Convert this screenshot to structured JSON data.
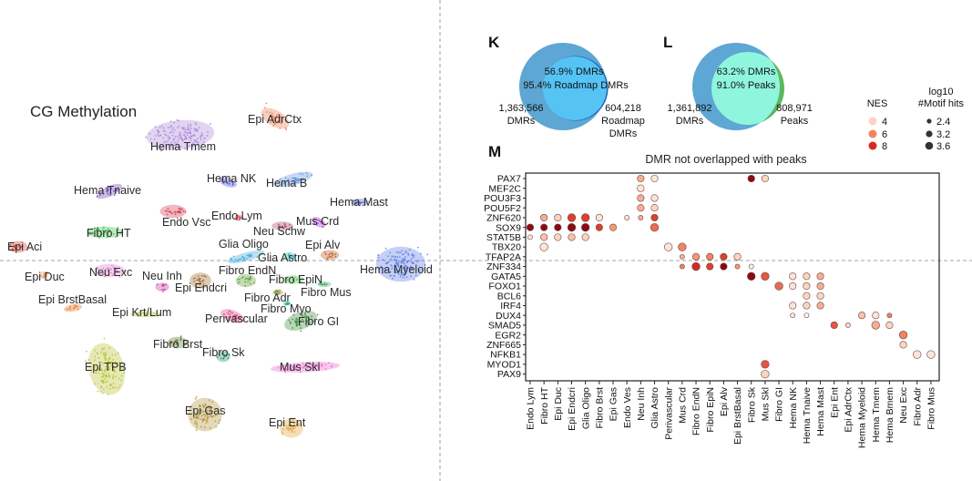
{
  "tsne": {
    "title": "CG Methylation",
    "clusters": [
      {
        "name": "Epi AdrCtx",
        "color": "#e8774f"
      },
      {
        "name": "Hema Tmem",
        "color": "#a883d8"
      },
      {
        "name": "Hema NK",
        "color": "#3b3fcf"
      },
      {
        "name": "Hema B",
        "color": "#5b8fe0"
      },
      {
        "name": "Hema Tnaive",
        "color": "#6a3fb5"
      },
      {
        "name": "Hema Mast",
        "color": "#4b5fc9"
      },
      {
        "name": "Endo Vsc",
        "color": "#d0344a"
      },
      {
        "name": "Endo Lym",
        "color": "#d84a50"
      },
      {
        "name": "Neu Schw",
        "color": "#a8405c"
      },
      {
        "name": "Mus Crd",
        "color": "#a22fd0"
      },
      {
        "name": "Fibro HT",
        "color": "#3cbf4b"
      },
      {
        "name": "Glia Oligo",
        "color": "#3aa5d8"
      },
      {
        "name": "Glia Astro",
        "color": "#1ec0c0"
      },
      {
        "name": "Epi Alv",
        "color": "#b5521e"
      },
      {
        "name": "Epi Aci",
        "color": "#d63a2b"
      },
      {
        "name": "Hema Myeloid",
        "color": "#5a78e6"
      },
      {
        "name": "Epi Duc",
        "color": "#e8904e"
      },
      {
        "name": "Neu Exc",
        "color": "#d87ac8"
      },
      {
        "name": "Neu Inh",
        "color": "#c0309a"
      },
      {
        "name": "Epi Endcri",
        "color": "#9c6a2a"
      },
      {
        "name": "Fibro EndN",
        "color": "#5a9a2d"
      },
      {
        "name": "Fibro EpiN",
        "color": "#4cc04c"
      },
      {
        "name": "Fibro Mus",
        "color": "#3cb06c"
      },
      {
        "name": "Fibro Adr",
        "color": "#7a8a2a"
      },
      {
        "name": "Fibro Myo",
        "color": "#20b0a0"
      },
      {
        "name": "Perivascular",
        "color": "#e03a7a"
      },
      {
        "name": "Fibro GI",
        "color": "#3a8a3a"
      },
      {
        "name": "Epi BrstBasal",
        "color": "#e87020"
      },
      {
        "name": "Epi Krt/Lum",
        "color": "#b0c040"
      },
      {
        "name": "Fibro Brst",
        "color": "#5a7030"
      },
      {
        "name": "Fibro Sk",
        "color": "#1a8a6a"
      },
      {
        "name": "Epi TPB",
        "color": "#b8c030"
      },
      {
        "name": "Mus Skl",
        "color": "#e860c8"
      },
      {
        "name": "Epi Gas",
        "color": "#b09030"
      },
      {
        "name": "Epi Ent",
        "color": "#e0a030"
      }
    ]
  },
  "venn_k": {
    "panel": "K",
    "overlap_line1": "56.9% DMRs",
    "overlap_line2": "95.4% Roadmap DMRs",
    "left_count": "1,363,566",
    "left_label": "DMRs",
    "right_count": "604,218",
    "right_label1": "Roadmap",
    "right_label2": "DMRs",
    "colors": {
      "left": "#5ea6d4",
      "overlap": "#55c4f5",
      "right": "#1f5fb5"
    }
  },
  "venn_l": {
    "panel": "L",
    "overlap_line1": "63.2% DMRs",
    "overlap_line2": "91.0% Peaks",
    "left_count": "1,361,892",
    "left_label": "DMRs",
    "right_count": "808,971",
    "right_label": "Peaks",
    "colors": {
      "left": "#5ea6d4",
      "overlap": "#8ff5dc",
      "right": "#5cb85c"
    }
  },
  "legend": {
    "nes_title": "NES",
    "nes_values": [
      "4",
      "6",
      "8"
    ],
    "hits_title1": "log10",
    "hits_title2": "#Motif hits",
    "hits_values": [
      "2.4",
      "3.2",
      "3.6"
    ]
  },
  "chart_data": {
    "panel": "M",
    "type": "dot",
    "title": "DMR not overlapped with peaks",
    "rows": [
      "PAX7",
      "MEF2C",
      "POU3F3",
      "POU5F2",
      "ZNF620",
      "SOX9",
      "STAT5B",
      "TBX20",
      "TFAP2A",
      "ZNF334",
      "GATA5",
      "FOXO1",
      "BCL6",
      "IRF4",
      "DUX4",
      "SMAD5",
      "EGR2",
      "ZNF665",
      "NFKB1",
      "MYOD1",
      "PAX9"
    ],
    "columns": [
      "Endo Lym",
      "Fibro HT",
      "Epi Duc",
      "Epi Endcri",
      "Glia Oligo",
      "Fibro Brst",
      "Epi Gas",
      "Endo Ves",
      "Neu Inh",
      "Glia Astro",
      "Perivascular",
      "Mus Crd",
      "Fibro EndN",
      "Fibro EpiN",
      "Epi Alv",
      "Epi BrstBasal",
      "Fibro Sk",
      "Mus Skl",
      "Fibro GI",
      "Hema NK",
      "Hema Tnaive",
      "Hema Mast",
      "Epi Ent",
      "Epi AdrCtx",
      "Hema Myeloid",
      "Hema Tmem",
      "Hema Bmem",
      "Neu Exc",
      "Fibro Adr",
      "Fibro Mus"
    ],
    "color_key": "NES",
    "size_key": "log10 #Motif hits",
    "points": [
      [
        "PAX7",
        "Neu Inh",
        5,
        3.2
      ],
      [
        "PAX7",
        "Glia Astro",
        3.5,
        3.2
      ],
      [
        "PAX7",
        "Fibro Sk",
        9,
        3.2
      ],
      [
        "PAX7",
        "Mus Skl",
        4,
        3.2
      ],
      [
        "MEF2C",
        "Neu Inh",
        3.5,
        3.2
      ],
      [
        "POU3F3",
        "Neu Inh",
        5,
        3.2
      ],
      [
        "POU3F3",
        "Glia Astro",
        3.5,
        3.2
      ],
      [
        "POU5F2",
        "Neu Inh",
        5,
        3.2
      ],
      [
        "POU5F2",
        "Glia Astro",
        4,
        3.2
      ],
      [
        "ZNF620",
        "Fibro HT",
        5,
        3.2
      ],
      [
        "ZNF620",
        "Epi Duc",
        4,
        3.2
      ],
      [
        "ZNF620",
        "Epi Endcri",
        7.5,
        3.6
      ],
      [
        "ZNF620",
        "Glia Oligo",
        7.5,
        3.6
      ],
      [
        "ZNF620",
        "Fibro Brst",
        3.5,
        3.2
      ],
      [
        "ZNF620",
        "Endo Ves",
        3.5,
        2.4
      ],
      [
        "ZNF620",
        "Neu Inh",
        5,
        2.4
      ],
      [
        "ZNF620",
        "Glia Astro",
        7.5,
        3.2
      ],
      [
        "SOX9",
        "Endo Lym",
        9,
        3.2
      ],
      [
        "SOX9",
        "Fibro HT",
        9,
        3.2
      ],
      [
        "SOX9",
        "Epi Duc",
        9,
        3.2
      ],
      [
        "SOX9",
        "Epi Endcri",
        9,
        3.6
      ],
      [
        "SOX9",
        "Glia Oligo",
        9,
        3.6
      ],
      [
        "SOX9",
        "Fibro Brst",
        7.5,
        3.2
      ],
      [
        "SOX9",
        "Epi Gas",
        5.5,
        3.2
      ],
      [
        "SOX9",
        "Glia Astro",
        6.5,
        3.6
      ],
      [
        "STAT5B",
        "Endo Lym",
        3.5,
        2.4
      ],
      [
        "STAT5B",
        "Fibro HT",
        4.5,
        3.2
      ],
      [
        "STAT5B",
        "Epi Duc",
        4,
        3.2
      ],
      [
        "STAT5B",
        "Epi Endcri",
        4.5,
        3.2
      ],
      [
        "STAT5B",
        "Glia Oligo",
        4,
        3.2
      ],
      [
        "TBX20",
        "Fibro HT",
        3.5,
        3.6
      ],
      [
        "TBX20",
        "Perivascular",
        3.5,
        3.6
      ],
      [
        "TBX20",
        "Mus Crd",
        6,
        3.6
      ],
      [
        "TFAP2A",
        "Mus Crd",
        5,
        2.4
      ],
      [
        "TFAP2A",
        "Fibro EndN",
        5.5,
        3.2
      ],
      [
        "TFAP2A",
        "Fibro EpiN",
        6,
        3.2
      ],
      [
        "TFAP2A",
        "Epi Alv",
        7.5,
        3.2
      ],
      [
        "TFAP2A",
        "Epi BrstBasal",
        4,
        3.2
      ],
      [
        "ZNF334",
        "Mus Crd",
        6,
        2.4
      ],
      [
        "ZNF334",
        "Fibro EndN",
        8,
        3.6
      ],
      [
        "ZNF334",
        "Fibro EpiN",
        7.5,
        3.2
      ],
      [
        "ZNF334",
        "Epi Alv",
        9,
        3.2
      ],
      [
        "ZNF334",
        "Epi BrstBasal",
        5.5,
        2.4
      ],
      [
        "ZNF334",
        "Fibro Sk",
        3,
        2.4
      ],
      [
        "GATA5",
        "Fibro Sk",
        9,
        3.6
      ],
      [
        "GATA5",
        "Mus Skl",
        7,
        3.6
      ],
      [
        "GATA5",
        "Hema NK",
        3.5,
        3.2
      ],
      [
        "GATA5",
        "Hema Tnaive",
        4,
        3.2
      ],
      [
        "GATA5",
        "Hema Mast",
        5,
        3.2
      ],
      [
        "FOXO1",
        "Fibro GI",
        6.5,
        3.6
      ],
      [
        "FOXO1",
        "Hema NK",
        3.5,
        3.2
      ],
      [
        "FOXO1",
        "Hema Tnaive",
        4,
        3.2
      ],
      [
        "FOXO1",
        "Hema Mast",
        5,
        3.2
      ],
      [
        "BCL6",
        "Hema Tnaive",
        4,
        3.2
      ],
      [
        "BCL6",
        "Hema Mast",
        4,
        3.2
      ],
      [
        "IRF4",
        "Hema NK",
        3.5,
        3.2
      ],
      [
        "IRF4",
        "Hema Tnaive",
        4,
        3.2
      ],
      [
        "IRF4",
        "Hema Mast",
        5,
        3.2
      ],
      [
        "DUX4",
        "Hema NK",
        3.5,
        2.4
      ],
      [
        "DUX4",
        "Hema Tnaive",
        3,
        2.4
      ],
      [
        "DUX4",
        "Hema Myeloid",
        4.5,
        3.2
      ],
      [
        "DUX4",
        "Hema Tmem",
        3.5,
        3.2
      ],
      [
        "DUX4",
        "Hema Bmem",
        6,
        2.4
      ],
      [
        "SMAD5",
        "Epi Ent",
        7,
        3.2
      ],
      [
        "SMAD5",
        "Epi AdrCtx",
        4,
        2.4
      ],
      [
        "SMAD5",
        "Hema Tmem",
        5,
        3.6
      ],
      [
        "SMAD5",
        "Hema Bmem",
        4,
        3.2
      ],
      [
        "EGR2",
        "Neu Exc",
        6,
        3.6
      ],
      [
        "ZNF665",
        "Neu Exc",
        4,
        3.2
      ],
      [
        "NFKB1",
        "Fibro Adr",
        3.5,
        3.6
      ],
      [
        "NFKB1",
        "Fibro Mus",
        3.5,
        3.6
      ],
      [
        "MYOD1",
        "Mus Skl",
        7,
        3.6
      ],
      [
        "PAX9",
        "Mus Skl",
        4,
        3.6
      ]
    ]
  }
}
